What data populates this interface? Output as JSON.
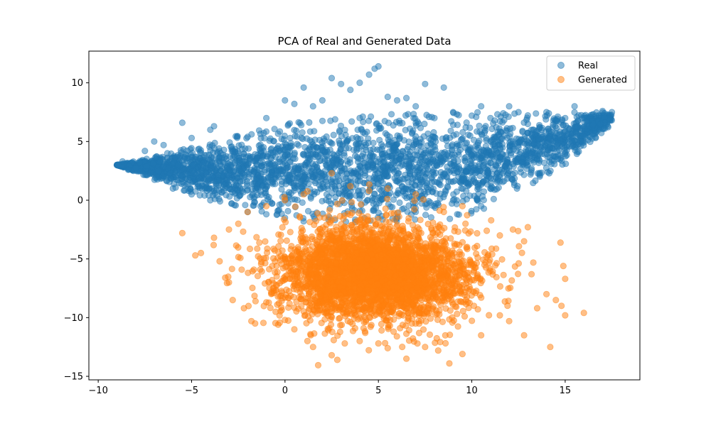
{
  "chart_data": {
    "type": "scatter",
    "title": "PCA of Real and Generated Data",
    "xlabel": "",
    "ylabel": "",
    "xlim": [
      -10.5,
      19.0
    ],
    "ylim": [
      -15.3,
      12.7
    ],
    "xticks": [
      -10,
      -5,
      0,
      5,
      10,
      15
    ],
    "yticks": [
      -15,
      -10,
      -5,
      0,
      5,
      10
    ],
    "xtick_labels": [
      "−10",
      "−5",
      "0",
      "5",
      "10",
      "15"
    ],
    "ytick_labels": [
      "−15",
      "−10",
      "−5",
      "0",
      "5",
      "10"
    ],
    "grid": false,
    "legend_position": "top-right",
    "series": [
      {
        "name": "Real",
        "color": "#1f77b4",
        "alpha": 0.5,
        "distribution": {
          "shape": "wedge",
          "apex": [
            -9.0,
            3.0
          ],
          "x_range": [
            -9.0,
            17.5
          ],
          "upper_edge": [
            [
              -9.0,
              3.0
            ],
            [
              -5.0,
              4.5
            ],
            [
              0.0,
              6.5
            ],
            [
              5.0,
              7.5
            ],
            [
              10.0,
              7.5
            ],
            [
              15.0,
              7.5
            ],
            [
              17.5,
              7.5
            ]
          ],
          "lower_edge": [
            [
              -9.0,
              3.0
            ],
            [
              -5.0,
              0.5
            ],
            [
              0.0,
              -1.5
            ],
            [
              5.0,
              -2.0
            ],
            [
              10.0,
              -1.5
            ],
            [
              15.0,
              3.0
            ],
            [
              17.5,
              6.5
            ]
          ]
        },
        "points": [
          [
            -9.0,
            3.0
          ],
          [
            -8.7,
            3.3
          ],
          [
            -8.4,
            2.6
          ],
          [
            -7.5,
            4.2
          ],
          [
            -7.0,
            5.0
          ],
          [
            -6.5,
            4.7
          ],
          [
            -5.5,
            6.6
          ],
          [
            -5.0,
            5.3
          ],
          [
            -4.0,
            6.0
          ],
          [
            -3.8,
            6.3
          ],
          [
            -2.0,
            5.4
          ],
          [
            -1.0,
            7.0
          ],
          [
            0.0,
            8.5
          ],
          [
            0.5,
            8.2
          ],
          [
            1.0,
            9.6
          ],
          [
            1.5,
            8.0
          ],
          [
            2.0,
            8.5
          ],
          [
            2.5,
            10.4
          ],
          [
            3.0,
            9.9
          ],
          [
            3.5,
            9.4
          ],
          [
            4.0,
            10.0
          ],
          [
            4.5,
            10.7
          ],
          [
            4.8,
            11.2
          ],
          [
            5.0,
            11.4
          ],
          [
            5.5,
            8.8
          ],
          [
            6.0,
            8.5
          ],
          [
            6.5,
            8.7
          ],
          [
            7.0,
            8.0
          ],
          [
            7.5,
            9.9
          ],
          [
            8.0,
            7.0
          ],
          [
            8.5,
            9.6
          ],
          [
            9.0,
            7.5
          ],
          [
            10.0,
            7.2
          ],
          [
            10.5,
            8.0
          ],
          [
            11.0,
            7.0
          ],
          [
            12.0,
            8.0
          ],
          [
            12.5,
            7.5
          ],
          [
            13.0,
            6.5
          ],
          [
            14.0,
            7.5
          ],
          [
            15.0,
            7.0
          ],
          [
            15.5,
            8.0
          ],
          [
            16.0,
            7.0
          ],
          [
            16.5,
            6.5
          ],
          [
            17.0,
            7.6
          ],
          [
            17.5,
            7.5
          ],
          [
            14.5,
            5.0
          ],
          [
            15.5,
            4.5
          ],
          [
            16.0,
            5.5
          ],
          [
            13.0,
            3.0
          ],
          [
            12.0,
            2.5
          ],
          [
            11.0,
            1.0
          ],
          [
            10.5,
            -0.5
          ],
          [
            11.5,
            2.0
          ],
          [
            12.5,
            4.5
          ],
          [
            9.0,
            0.0
          ],
          [
            8.0,
            -0.5
          ],
          [
            7.0,
            -1.0
          ],
          [
            6.0,
            -1.5
          ],
          [
            -3.0,
            1.0
          ],
          [
            -4.0,
            0.0
          ],
          [
            -5.0,
            0.5
          ],
          [
            -6.0,
            1.0
          ],
          [
            -2.0,
            -1.0
          ],
          [
            -1.0,
            -1.2
          ],
          [
            0.0,
            -1.5
          ],
          [
            1.0,
            -1.8
          ]
        ]
      },
      {
        "name": "Generated",
        "color": "#ff7f0e",
        "alpha": 0.5,
        "distribution": {
          "shape": "ellipse",
          "center": [
            4.8,
            -6.2
          ],
          "x_radius": 5.0,
          "y_radius": 4.0
        },
        "points": [
          [
            -5.5,
            -2.8
          ],
          [
            -4.8,
            -4.7
          ],
          [
            -4.5,
            -4.5
          ],
          [
            -3.8,
            -3.2
          ],
          [
            -3.5,
            -5.2
          ],
          [
            -3.2,
            -6.6
          ],
          [
            -3.0,
            -7.0
          ],
          [
            -2.8,
            -8.5
          ],
          [
            -2.2,
            -9.2
          ],
          [
            -1.8,
            -10.3
          ],
          [
            -1.6,
            -10.5
          ],
          [
            -1.0,
            -8.7
          ],
          [
            -0.5,
            -9.5
          ],
          [
            0.0,
            -10.2
          ],
          [
            0.5,
            -11.0
          ],
          [
            1.2,
            -12.0
          ],
          [
            1.5,
            -12.5
          ],
          [
            2.5,
            -13.2
          ],
          [
            2.8,
            -13.6
          ],
          [
            3.2,
            -12.2
          ],
          [
            4.0,
            -12.0
          ],
          [
            5.0,
            -12.2
          ],
          [
            5.5,
            -12.6
          ],
          [
            6.5,
            -13.5
          ],
          [
            7.5,
            -12.5
          ],
          [
            8.2,
            -12.8
          ],
          [
            8.8,
            -13.9
          ],
          [
            9.5,
            -13.1
          ],
          [
            10.5,
            -11.5
          ],
          [
            11.5,
            -9.8
          ],
          [
            12.0,
            -10.3
          ],
          [
            12.8,
            -11.5
          ],
          [
            13.5,
            -9.2
          ],
          [
            14.0,
            -8.0
          ],
          [
            14.2,
            -12.5
          ],
          [
            14.5,
            -8.5
          ],
          [
            14.8,
            -9.0
          ],
          [
            15.0,
            -9.8
          ],
          [
            15.0,
            -6.7
          ],
          [
            14.9,
            -5.6
          ],
          [
            16.0,
            -9.6
          ],
          [
            13.2,
            -6.3
          ],
          [
            12.8,
            -3.5
          ],
          [
            13.0,
            -2.3
          ],
          [
            12.2,
            -2.5
          ],
          [
            11.5,
            -3.0
          ],
          [
            10.8,
            -2.6
          ],
          [
            9.5,
            -0.5
          ],
          [
            8.5,
            -1.0
          ],
          [
            7.0,
            0.5
          ],
          [
            5.5,
            1.0
          ],
          [
            4.5,
            0.8
          ],
          [
            3.5,
            1.2
          ],
          [
            2.5,
            2.3
          ],
          [
            1.0,
            0.5
          ],
          [
            0.0,
            0.0
          ],
          [
            -1.0,
            -0.5
          ],
          [
            -2.0,
            -1.0
          ],
          [
            -2.5,
            -2.0
          ],
          [
            -3.0,
            -2.5
          ]
        ]
      }
    ]
  }
}
